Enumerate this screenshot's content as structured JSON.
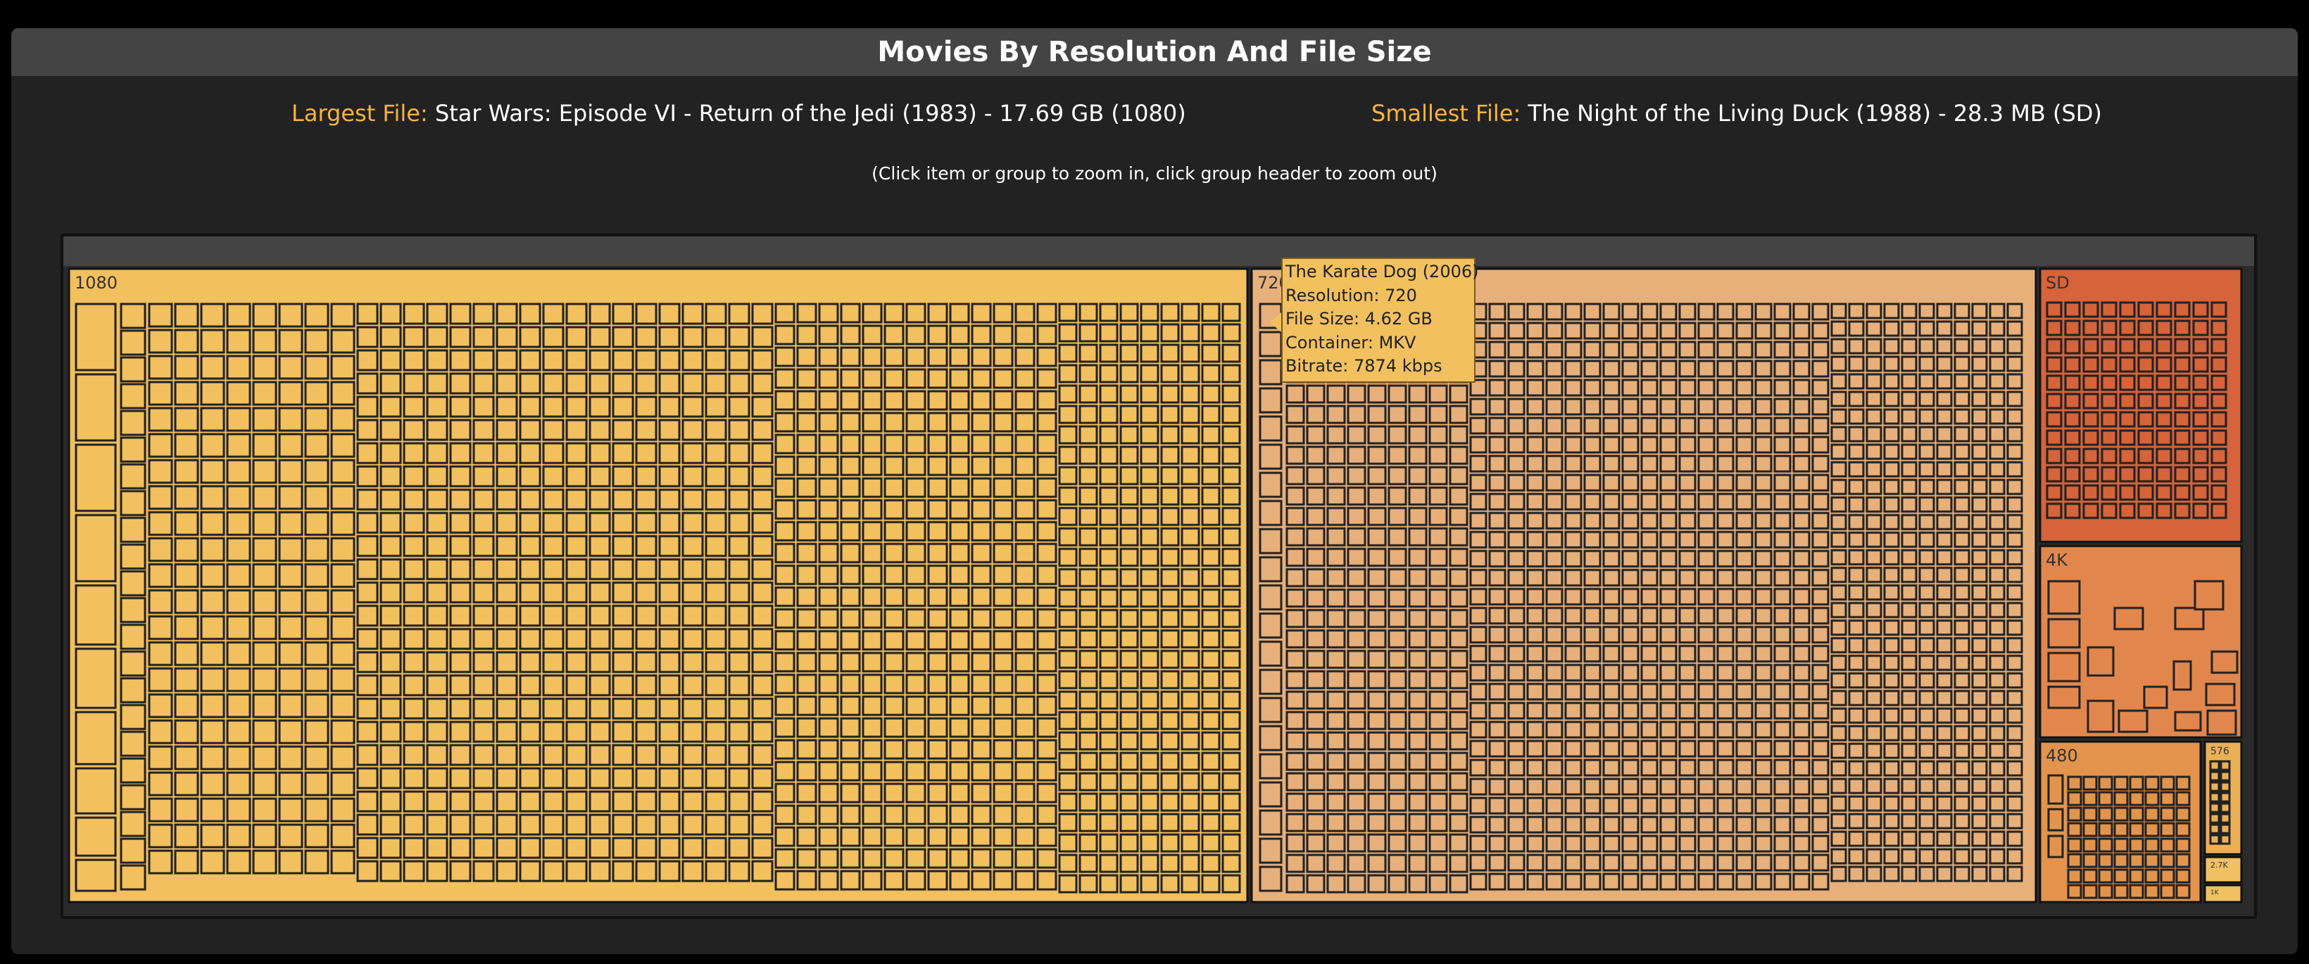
{
  "page": {
    "title": "Movies By Resolution And File Size",
    "largest_label": "Largest File:",
    "largest_value": "Star Wars: Episode VI - Return of the Jedi (1983) - 17.69 GB (1080)",
    "smallest_label": "Smallest File:",
    "smallest_value": "The Night of the Living Duck (1988) - 28.3 MB (SD)",
    "hint": "(Click item or group to zoom in, click group header to zoom out)"
  },
  "treemap": {
    "groups": [
      {
        "label": "1080",
        "color": "#f2c05e"
      },
      {
        "label": "720",
        "color": "#e7b07a"
      },
      {
        "label": "SD",
        "color": "#d6633a"
      },
      {
        "label": "4K",
        "color": "#e1874e"
      },
      {
        "label": "480",
        "color": "#e3944c"
      },
      {
        "label": "576",
        "color": "#ebb055"
      },
      {
        "label": "2.7K",
        "color": "#f0c063"
      },
      {
        "label": "1K",
        "color": "#f0c063"
      }
    ],
    "tile_stroke": "#222222"
  },
  "tooltip": {
    "lines": [
      "The Karate Dog (2006)",
      "Resolution: 720",
      "File Size: 4.62 GB",
      "Container: MKV",
      "Bitrate: 7874 kbps"
    ]
  }
}
